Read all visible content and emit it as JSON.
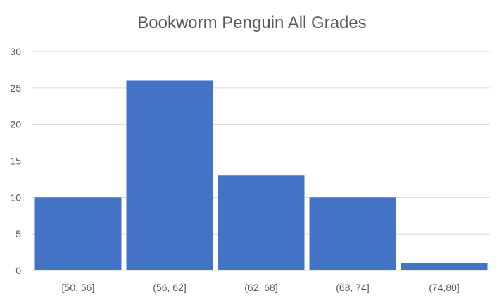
{
  "chart_data": {
    "type": "bar",
    "title": "Bookworm Penguin All Grades",
    "xlabel": "",
    "ylabel": "",
    "categories": [
      "[50, 56]",
      "(56, 62]",
      "(62, 68]",
      "(68, 74]",
      "(74,80]"
    ],
    "values": [
      10,
      26,
      13,
      10,
      1
    ],
    "ylim": [
      0,
      30
    ],
    "yticks": [
      0,
      5,
      10,
      15,
      20,
      25,
      30
    ],
    "grid": true,
    "legend": "none",
    "bar_color": "#4472C4",
    "grid_color": "#D9D9D9"
  }
}
